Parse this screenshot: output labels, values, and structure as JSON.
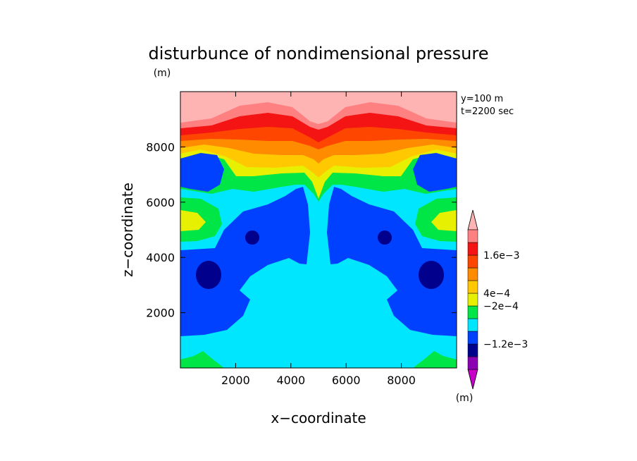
{
  "chart_data": {
    "type": "heatmap",
    "title": "disturbunce of nondimensional pressure",
    "title_unit": "(m)",
    "xlabel": "x−coordinate",
    "ylabel": "z−coordinate",
    "annotations": [
      "y=100 m",
      "t=2200 sec"
    ],
    "xlim": [
      0,
      10000
    ],
    "ylim": [
      0,
      10000
    ],
    "x_ticks": [
      2000,
      4000,
      6000,
      8000
    ],
    "x_tick_labels": [
      "2000",
      "4000",
      "6000",
      "8000"
    ],
    "y_ticks": [
      2000,
      4000,
      6000,
      8000
    ],
    "y_tick_labels": [
      "2000",
      "4000",
      "6000",
      "8000"
    ],
    "colorbar": {
      "unit": "(m)",
      "colors": [
        "#c800c8",
        "#8c00b4",
        "#00008c",
        "#0040ff",
        "#00e6ff",
        "#00e646",
        "#e6f000",
        "#ffc800",
        "#ff8c00",
        "#ff4600",
        "#f51414",
        "#ff8080",
        "#ffb4b4"
      ],
      "labels": [
        {
          "text": "−1.2e−3",
          "level": -0.0012
        },
        {
          "text": "−2e−4",
          "level": -0.0002
        },
        {
          "text": "4e−4",
          "level": 0.0004
        },
        {
          "text": "1.6e−3",
          "level": 0.0016
        }
      ]
    },
    "fill_colors": {
      "top": "#ffb4b4",
      "r1": "#ff8080",
      "r2": "#f51414",
      "r3": "#ff4600",
      "r4": "#ff8c00",
      "r5": "#ffc800",
      "r6": "#e6f000",
      "green": "#00e646",
      "cyan": "#00e6ff",
      "blue": "#0040ff",
      "navy": "#00008c"
    }
  }
}
